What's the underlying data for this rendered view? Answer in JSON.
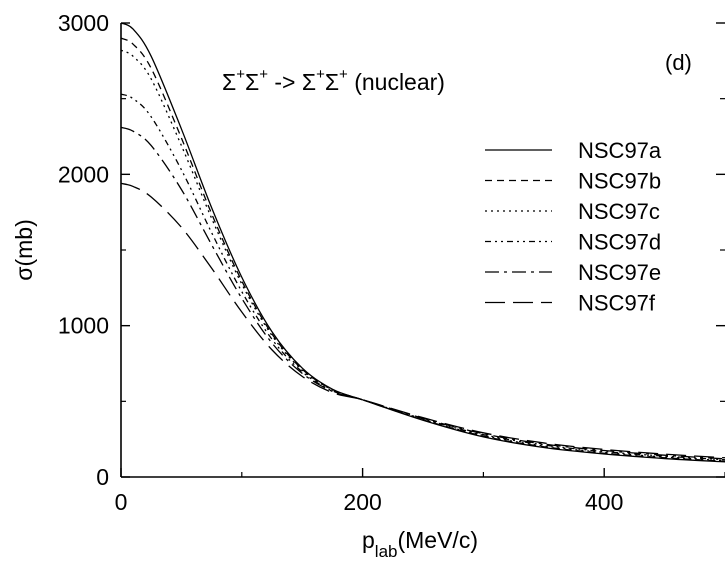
{
  "chart_data": {
    "type": "line",
    "title": "Σ+Σ+ -> Σ+Σ+ (nuclear)",
    "title_parts": {
      "sigma": "Σ",
      "plus": "+",
      "arrow": " -> ",
      "suffix": " (nuclear)"
    },
    "panel_label": "(d)",
    "xlabel": {
      "main": "p",
      "sub": "lab",
      "rest": "(MeV/c)"
    },
    "ylabel": "σ(mb)",
    "xlim": [
      0,
      500
    ],
    "ylim": [
      0,
      3000
    ],
    "x_ticks": [
      0,
      200,
      400
    ],
    "x_tick_labels": [
      "0",
      "200",
      "400"
    ],
    "y_ticks": [
      0,
      1000,
      2000,
      3000
    ],
    "y_tick_labels": [
      "0",
      "1000",
      "2000",
      "3000"
    ],
    "legend_position": "right",
    "grid": false,
    "x": [
      0,
      10,
      25,
      50,
      75,
      100,
      125,
      150,
      175,
      200,
      250,
      300,
      350,
      400,
      450,
      500
    ],
    "series": [
      {
        "name": "NSC97a",
        "dash": "solid",
        "values": [
          3000,
          2960,
          2780,
          2300,
          1780,
          1320,
          960,
          720,
          580,
          510,
          375,
          265,
          195,
          152,
          122,
          100
        ]
      },
      {
        "name": "NSC97b",
        "dash": "short-dash",
        "values": [
          2900,
          2860,
          2700,
          2240,
          1740,
          1295,
          945,
          712,
          578,
          510,
          378,
          270,
          200,
          157,
          127,
          104
        ]
      },
      {
        "name": "NSC97c",
        "dash": "dotted",
        "values": [
          2820,
          2780,
          2630,
          2190,
          1710,
          1275,
          935,
          706,
          576,
          510,
          380,
          274,
          205,
          162,
          132,
          108
        ]
      },
      {
        "name": "NSC97d",
        "dash": "dash-dot-dot",
        "values": [
          2530,
          2500,
          2380,
          2030,
          1615,
          1225,
          910,
          695,
          570,
          510,
          384,
          280,
          212,
          168,
          138,
          114
        ]
      },
      {
        "name": "NSC97e",
        "dash": "dash-dot",
        "values": [
          2310,
          2285,
          2190,
          1900,
          1535,
          1180,
          885,
          685,
          566,
          510,
          388,
          286,
          218,
          175,
          144,
          120
        ]
      },
      {
        "name": "NSC97f",
        "dash": "long-dash",
        "values": [
          1940,
          1920,
          1850,
          1650,
          1380,
          1090,
          840,
          665,
          558,
          510,
          392,
          292,
          225,
          182,
          151,
          127
        ]
      }
    ]
  }
}
